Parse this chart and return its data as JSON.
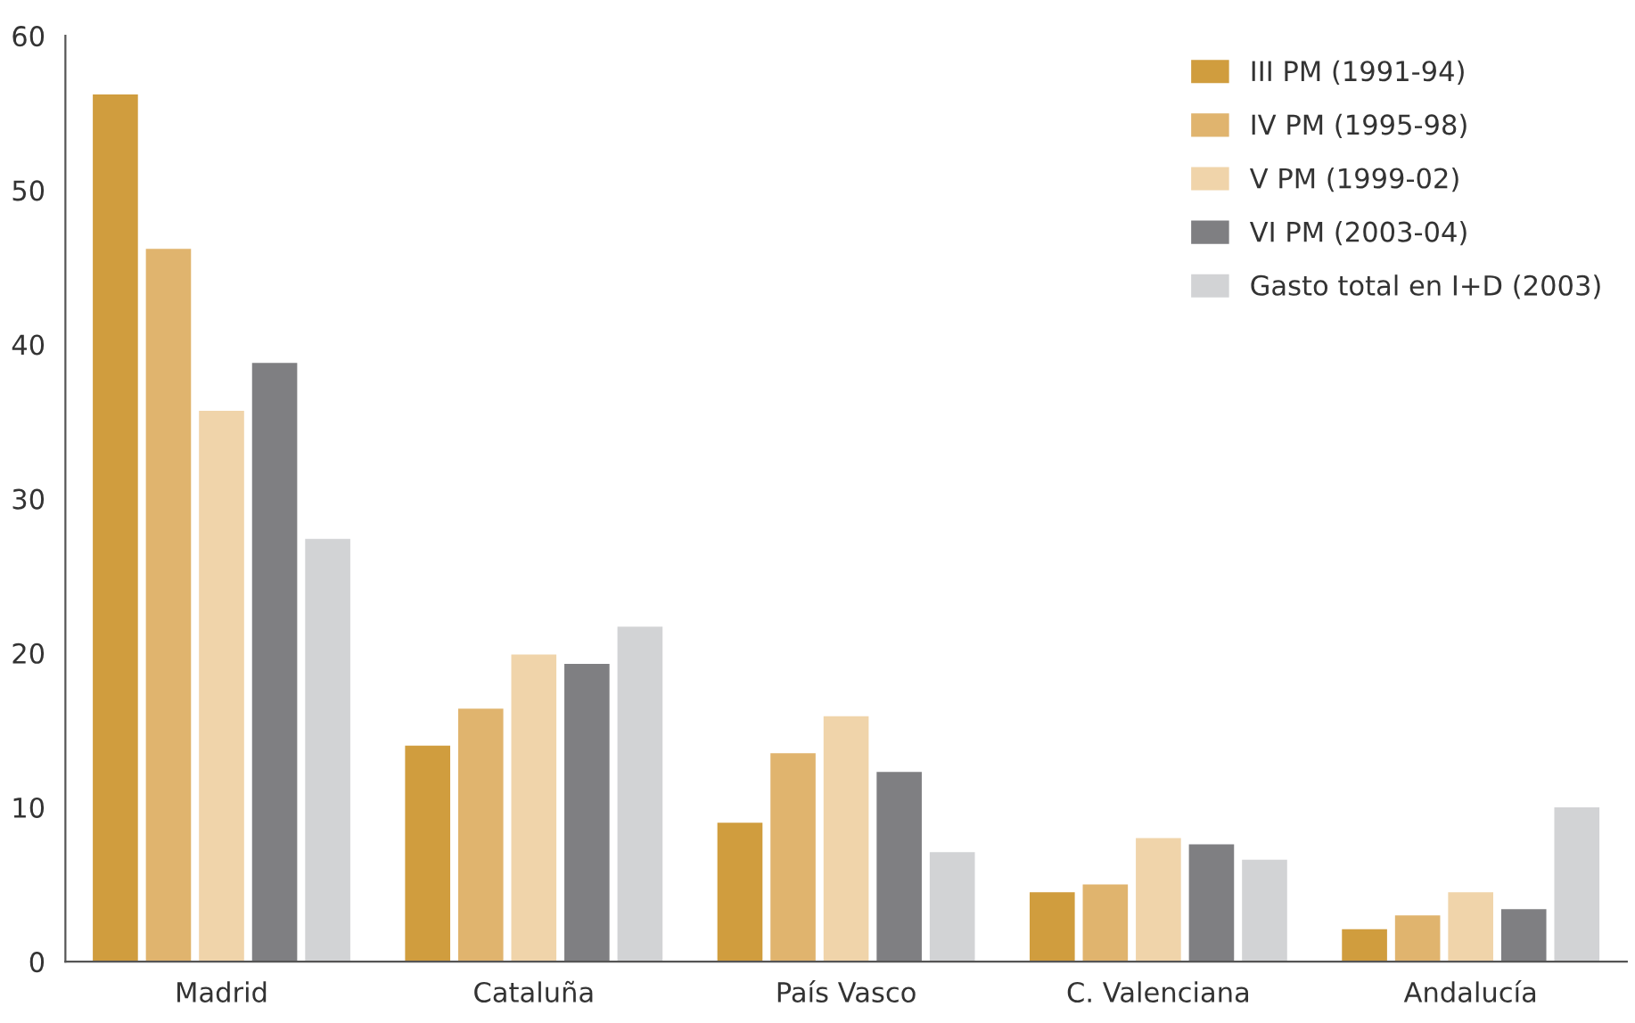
{
  "chart_data": {
    "type": "bar",
    "categories": [
      "Madrid",
      "Cataluña",
      "País Vasco",
      "C. Valenciana",
      "Andalucía"
    ],
    "series": [
      {
        "name": "III PM (1991-94)",
        "color": "#d09d3e",
        "values": [
          56.2,
          14.0,
          9.0,
          4.5,
          2.1
        ]
      },
      {
        "name": "IV PM (1995-98)",
        "color": "#e0b46e",
        "values": [
          46.2,
          16.4,
          13.5,
          5.0,
          3.0
        ]
      },
      {
        "name": "V PM (1999-02)",
        "color": "#f0d4aa",
        "values": [
          35.7,
          19.9,
          15.9,
          8.0,
          4.5
        ]
      },
      {
        "name": "VI PM (2003-04)",
        "color": "#7f7f82",
        "values": [
          38.8,
          19.3,
          12.3,
          7.6,
          3.4
        ]
      },
      {
        "name": "Gasto total en I+D (2003)",
        "color": "#d2d3d5",
        "values": [
          27.4,
          21.7,
          7.1,
          6.6,
          10.0
        ]
      }
    ],
    "ylim": [
      0,
      60
    ],
    "yticks": [
      0,
      10,
      20,
      30,
      40,
      50,
      60
    ],
    "grid": false,
    "legend": "top right"
  }
}
